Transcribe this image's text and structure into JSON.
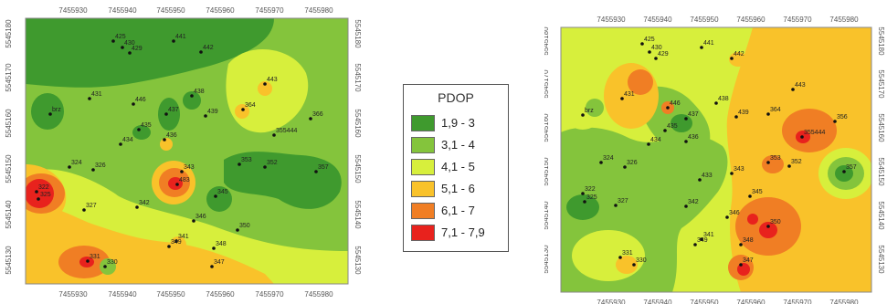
{
  "legend": {
    "title": "PDOP",
    "classes": [
      {
        "label": "1,9 - 3",
        "color": "#3f9a2e"
      },
      {
        "label": "3,1 - 4",
        "color": "#84c43c"
      },
      {
        "label": "4,1 - 5",
        "color": "#d7ef3c"
      },
      {
        "label": "5,1 - 6",
        "color": "#f9c22a"
      },
      {
        "label": "6,1 - 7",
        "color": "#f07e24"
      },
      {
        "label": "7,1 - 7,9",
        "color": "#e8221d"
      }
    ]
  },
  "axes": {
    "x_ticks": [
      "7455930",
      "7455940",
      "7455950",
      "7455960",
      "7455970",
      "7455980"
    ],
    "y_ticks": [
      "5545180",
      "5545170",
      "5545160",
      "5545150",
      "5545140",
      "5545130"
    ]
  },
  "left_map": {
    "points": [
      "425",
      "430",
      "429",
      "441",
      "442",
      "443",
      "431",
      "446",
      "437",
      "438",
      "364",
      "439",
      "366",
      "435",
      "434",
      "436",
      "355444",
      "324",
      "326",
      "353",
      "352",
      "357",
      "322",
      "325",
      "483",
      "343",
      "327",
      "342",
      "345",
      "346",
      "350",
      "341",
      "348",
      "349",
      "347",
      "331",
      "330",
      "brz"
    ]
  },
  "right_map": {
    "points": [
      "425",
      "430",
      "429",
      "441",
      "442",
      "443",
      "431",
      "446",
      "437",
      "438",
      "364",
      "439",
      "356",
      "435",
      "434",
      "436",
      "355444",
      "324",
      "326",
      "353",
      "352",
      "357",
      "322",
      "325",
      "433",
      "343",
      "327",
      "342",
      "345",
      "346",
      "350",
      "341",
      "348",
      "349",
      "347",
      "331",
      "330",
      "brz"
    ]
  }
}
